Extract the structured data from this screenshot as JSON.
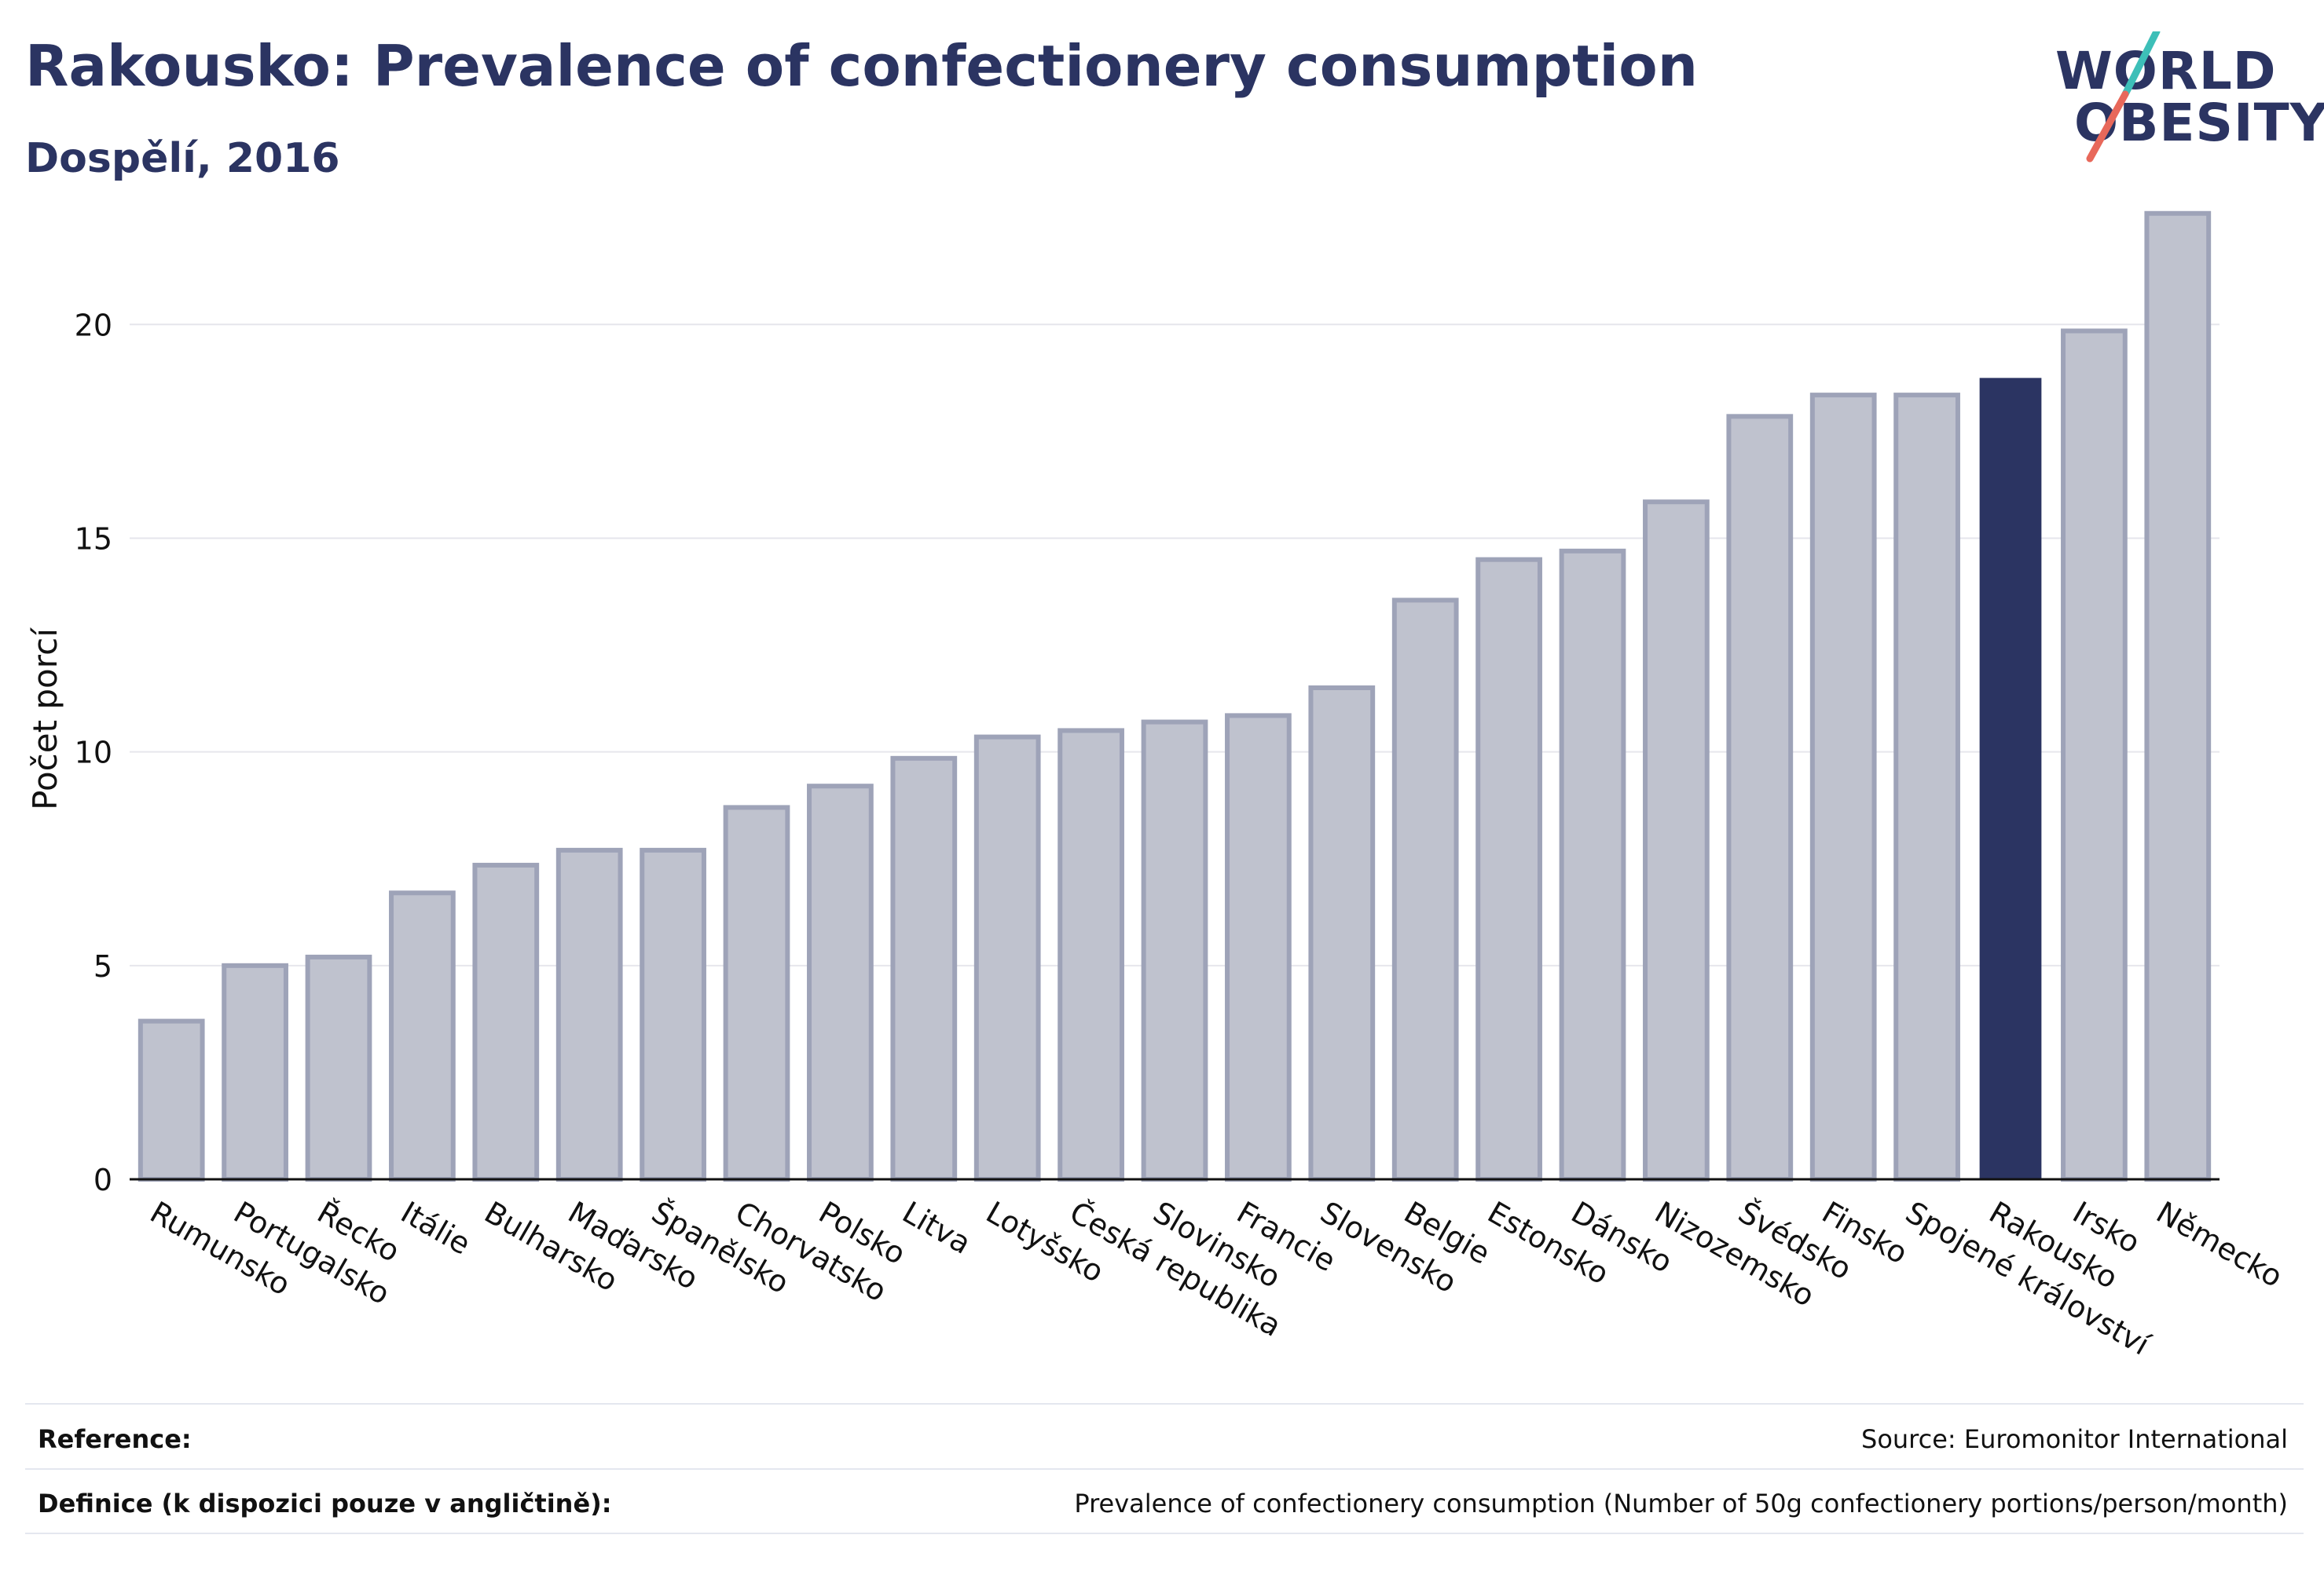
{
  "header": {
    "title": "Rakousko: Prevalence of confectionery consumption",
    "subtitle": "Dospělí, 2016"
  },
  "logo": {
    "line1": "WORLD",
    "line2": "OBESITY",
    "slash_color_top": "#3dbfb8",
    "slash_color_bottom": "#e8685a"
  },
  "chart_data": {
    "type": "bar",
    "ylabel": "Počet porcí",
    "xlabel": "",
    "ylim": [
      0,
      23
    ],
    "yticks": [
      0,
      5,
      10,
      15,
      20
    ],
    "grid": true,
    "categories": [
      "Rumunsko",
      "Portugalsko",
      "Řecko",
      "Itálie",
      "Bulharsko",
      "Maďarsko",
      "Španělsko",
      "Chorvatsko",
      "Polsko",
      "Litva",
      "Lotyšsko",
      "Česká republika",
      "Slovinsko",
      "Francie",
      "Slovensko",
      "Belgie",
      "Estonsko",
      "Dánsko",
      "Nizozemsko",
      "Švédsko",
      "Finsko",
      "Spojené království",
      "Rakousko",
      "Irsko",
      "Německo"
    ],
    "values": [
      3.7,
      5.0,
      5.2,
      6.7,
      7.35,
      7.7,
      7.7,
      8.7,
      9.2,
      9.85,
      10.35,
      10.5,
      10.7,
      10.85,
      11.5,
      13.55,
      14.5,
      14.7,
      15.85,
      17.85,
      18.35,
      18.35,
      18.75,
      19.85,
      22.6
    ],
    "highlight": "Rakousko",
    "colors": {
      "bar": "#bfc2ce",
      "bar_border": "#9ea3b8",
      "highlight": "#2b3462",
      "axis": "#111111",
      "grid": "#e6e6ec"
    }
  },
  "footer": {
    "reference_label": "Reference:",
    "reference_value": "Source: Euromonitor International",
    "definition_label": "Definice (k dispozici pouze v angličtině):",
    "definition_value": "Prevalence of confectionery consumption (Number of 50g confectionery portions/person/month)"
  }
}
